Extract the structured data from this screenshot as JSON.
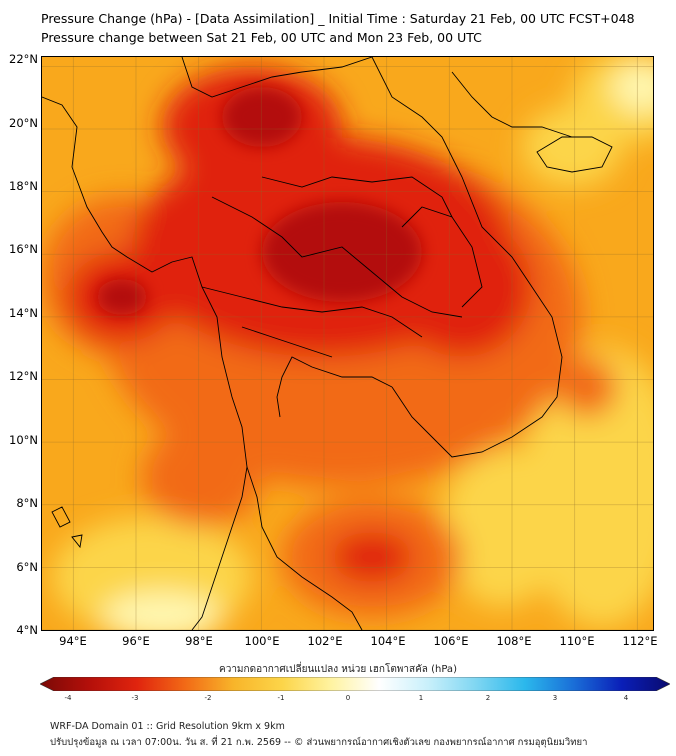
{
  "header": {
    "title": "Pressure Change (hPa) - [Data Assimilation] _ Initial Time : Saturday 21 Feb, 00 UTC FCST+048",
    "subtitle": "Pressure change between Sat 21 Feb, 00 UTC and Mon 23 Feb, 00 UTC"
  },
  "map": {
    "lat_labels": [
      "22°N",
      "20°N",
      "18°N",
      "16°N",
      "14°N",
      "12°N",
      "10°N",
      "8°N",
      "6°N",
      "4°N"
    ],
    "lon_labels": [
      "94°E",
      "96°E",
      "98°E",
      "100°E",
      "102°E",
      "104°E",
      "106°E",
      "108°E",
      "110°E",
      "112°E"
    ],
    "lat_range": [
      4,
      22.3
    ],
    "lon_range": [
      93,
      112.5
    ],
    "grid": true,
    "colors": {
      "background": "#f9a81c",
      "strong_fall": "#b30f0a",
      "fall": "#e0240e",
      "moderate_fall": "#f26a16",
      "weak_fall": "#f8b52a",
      "slight_fall": "#fcd549",
      "near_zero": "#fff7b0",
      "rise": "#7fd6f2",
      "boundaries": "#000000"
    }
  },
  "colorbar": {
    "title": "ความกดอากาศเปลี่ยนแปลง หน่วย เฮกโตพาสคัล (hPa)",
    "ticks": [
      "-4",
      "-3",
      "-2",
      "-1",
      "0",
      "1",
      "2",
      "3",
      "4"
    ],
    "range": [
      -4,
      4
    ],
    "colors": [
      "#7a0a06",
      "#b30f0a",
      "#e0240e",
      "#f26a16",
      "#f8b52a",
      "#fcd549",
      "#fff3a0",
      "#ffffff",
      "#c9f0fb",
      "#7fd6f2",
      "#2bb8ec",
      "#1a6fd8",
      "#0a1fb8",
      "#0a0a6e"
    ]
  },
  "footer": {
    "line1": "WRF-DA Domain 01 :: Grid Resolution 9km x 9km",
    "line2": "ปรับปรุงข้อมูล ณ เวลา 07:00น. วัน ส. ที่ 21 ก.พ. 2569 -- © ส่วนพยากรณ์อากาศเชิงตัวเลข กองพยากรณ์อากาศ กรมอุตุนิยมวิทยา"
  }
}
